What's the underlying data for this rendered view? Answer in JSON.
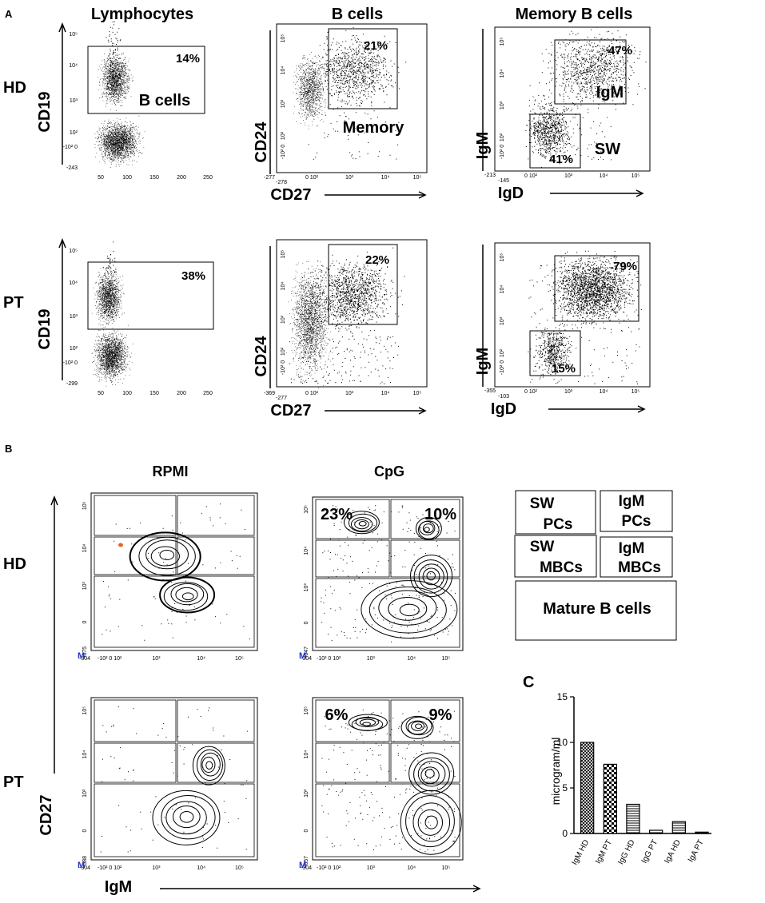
{
  "panel_labels": {
    "a": "A",
    "b": "B",
    "c": "C"
  },
  "panel_a": {
    "column_titles": [
      "Lymphocytes",
      "B cells",
      "Memory B cells"
    ],
    "row_labels": [
      "HD",
      "PT"
    ],
    "ticks": {
      "cd19_y": [
        "10⁵",
        "10⁴",
        "10³",
        "10²",
        "-10² 0",
        "-243"
      ],
      "cd19_y_pt": [
        "10⁵",
        "10⁴",
        "10³",
        "10²",
        "-10² 0",
        "-299"
      ],
      "fsc_x": [
        "50",
        "100",
        "150",
        "200",
        "250"
      ],
      "log_x": [
        "0 10²",
        "10³",
        "10⁴",
        "10⁵"
      ],
      "cd24_y": [
        "10⁵",
        "10⁴",
        "10³",
        "10²",
        "-10² 0"
      ],
      "igm_y": [
        "10⁵",
        "10⁴",
        "10³",
        "10²",
        "-10² 0"
      ],
      "cd24_min_hd": "-277",
      "cd27_min_hd": "-278",
      "cd24_min_pt": "-369",
      "cd27_min_pt": "-277",
      "igm_min_hd": "-213",
      "igd_min_hd": "-145",
      "igm_min_pt": "-355",
      "igd_min_pt": "-103"
    },
    "axis_labels": {
      "cd19": "CD19",
      "cd24": "CD24",
      "cd27": "CD27",
      "igm": "IgM",
      "igd": "IgD"
    },
    "hd": {
      "lymph_gate_pct": "14%",
      "lymph_gate_label": "B cells",
      "bcell_gate_pct": "21%",
      "bcell_gate_label": "Memory",
      "mem_igm_pct": "47%",
      "mem_igm_label": "IgM",
      "mem_sw_pct": "41%",
      "mem_sw_label": "SW"
    },
    "pt": {
      "lymph_gate_pct": "38%",
      "bcell_gate_pct": "22%",
      "mem_igm_pct": "79%",
      "mem_sw_pct": "15%"
    }
  },
  "panel_b": {
    "column_titles": [
      "RPMI",
      "CpG"
    ],
    "row_labels": [
      "HD",
      "PT"
    ],
    "x_axis_label": "IgM",
    "y_axis_label": "CD27",
    "ticks_x": [
      "-304",
      "-10² 0 10²",
      "10³",
      "10⁴",
      "10⁵"
    ],
    "ticks_y": [
      "10⁵",
      "10⁴",
      "10³",
      "0"
    ],
    "y_min": {
      "hd_rpmi": "-675",
      "hd_cpg": "-647",
      "pt_rpmi": "-588",
      "pt_cpg": "-657"
    },
    "corner_mark": "M",
    "cpg_hd_pcts": [
      "23%",
      "10%"
    ],
    "cpg_pt_pcts": [
      "6%",
      "9%"
    ],
    "legend": {
      "sw_pcs": [
        "SW",
        "PCs"
      ],
      "igm_pcs": [
        "IgM",
        "PCs"
      ],
      "sw_mbcs": [
        "SW",
        "MBCs"
      ],
      "igm_mbcs": [
        "IgM",
        "MBCs"
      ],
      "mature": "Mature B cells"
    }
  },
  "chart_data": {
    "type": "bar",
    "categories": [
      "IgM HD",
      "IgM PT",
      "IgG HD",
      "IgG PT",
      "IgA HD",
      "IgA PT"
    ],
    "values": [
      10,
      7.6,
      3.2,
      0.35,
      1.3,
      0.15
    ],
    "ylabel": "microgram/ml",
    "ylim": [
      0,
      15
    ],
    "yticks": [
      0,
      5,
      10,
      15
    ],
    "patterns": [
      "crosshatch-dense",
      "checker",
      "horizontal",
      "horizontal",
      "horizontal",
      "horizontal"
    ]
  }
}
